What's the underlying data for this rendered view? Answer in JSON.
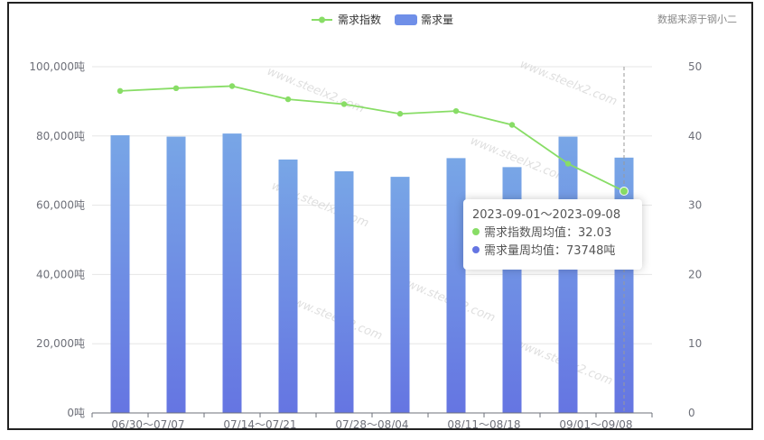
{
  "chart_data": {
    "type": "bar",
    "source_note": "数据来源于钢小二",
    "legend": [
      {
        "name": "需求指数",
        "color": "#88dd66",
        "kind": "line"
      },
      {
        "name": "需求量",
        "color": "#6f8fe8",
        "kind": "bar"
      }
    ],
    "x_tick_labels": [
      "06/30～07/07",
      "07/14～07/21",
      "07/28～08/04",
      "08/11～08/18",
      "09/01～09/08"
    ],
    "y_left": {
      "ticks": [
        "0吨",
        "20,000吨",
        "40,000吨",
        "60,000吨",
        "80,000吨",
        "100,000吨"
      ],
      "ylim": [
        0,
        100000
      ]
    },
    "y_right": {
      "ticks": [
        "0",
        "10",
        "20",
        "30",
        "40",
        "50"
      ],
      "ylim": [
        0,
        50
      ]
    },
    "series": [
      {
        "name": "需求量",
        "axis": "left",
        "type": "bar",
        "values": [
          80200,
          79800,
          80700,
          73200,
          69800,
          68200,
          73600,
          71000,
          79800,
          73748
        ]
      },
      {
        "name": "需求指数",
        "axis": "right",
        "type": "line",
        "values": [
          46.5,
          46.9,
          47.2,
          45.3,
          44.6,
          43.2,
          43.6,
          41.6,
          36.0,
          32.03
        ]
      }
    ],
    "tooltip": {
      "title": "2023-09-01～2023-09-08",
      "line1": "需求指数周均值：32.03",
      "line2": "需求量周均值：73748吨"
    },
    "watermark": "www.steelx2.com"
  }
}
